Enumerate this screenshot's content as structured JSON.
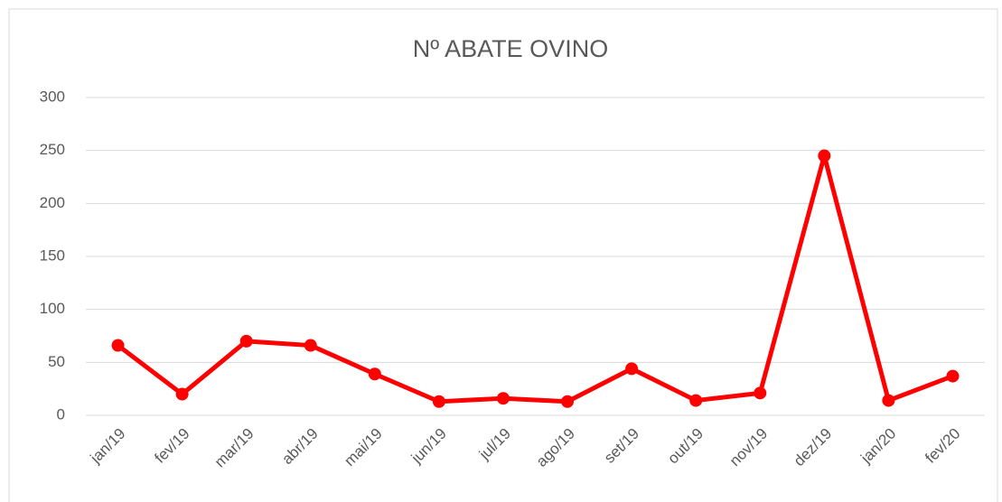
{
  "chart_data": {
    "type": "line",
    "title": "Nº ABATE OVINO",
    "categories": [
      "jan/19",
      "fev/19",
      "mar/19",
      "abr/19",
      "mai/19",
      "jun/19",
      "jul/19",
      "ago/19",
      "set/19",
      "out/19",
      "nov/19",
      "dez/19",
      "jan/20",
      "fev/20"
    ],
    "series": [
      {
        "name": "Nº ABATE OVINO",
        "color": "#ff0000",
        "values": [
          66,
          20,
          70,
          66,
          39,
          13,
          16,
          13,
          44,
          14,
          21,
          245,
          14,
          37
        ]
      }
    ],
    "ylim": [
      0,
      300
    ],
    "yticks": [
      0,
      50,
      100,
      150,
      200,
      250,
      300
    ],
    "grid": true
  }
}
